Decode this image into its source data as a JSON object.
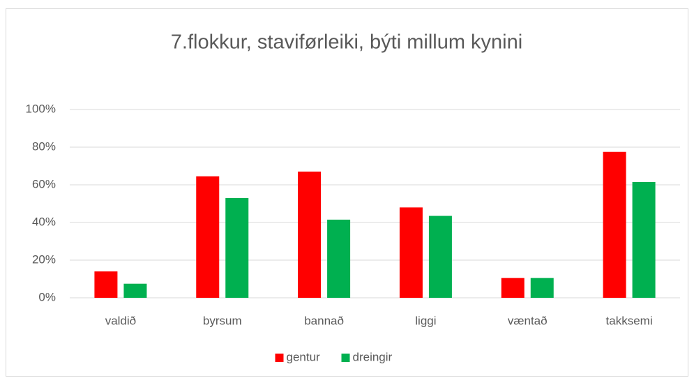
{
  "chart_data": {
    "type": "bar",
    "title": "7.flokkur, staviførleiki, býti millum kynini",
    "categories": [
      "valdið",
      "byrsum",
      "bannað",
      "liggi",
      "væntað",
      "takksemi"
    ],
    "series": [
      {
        "name": "gentur",
        "color": "#ff0000",
        "values": [
          14,
          64.5,
          67,
          48,
          10.5,
          77.5
        ]
      },
      {
        "name": "dreingir",
        "color": "#00b050",
        "values": [
          7.5,
          53,
          41.5,
          43.5,
          10.5,
          61.5
        ]
      }
    ],
    "ylim": [
      0,
      100
    ],
    "yticks": [
      {
        "value": 0,
        "label": "0%"
      },
      {
        "value": 20,
        "label": "20%"
      },
      {
        "value": 40,
        "label": "40%"
      },
      {
        "value": 60,
        "label": "60%"
      },
      {
        "value": 80,
        "label": "80%"
      },
      {
        "value": 100,
        "label": "100%"
      }
    ],
    "grid": true,
    "legend": "bottom"
  }
}
